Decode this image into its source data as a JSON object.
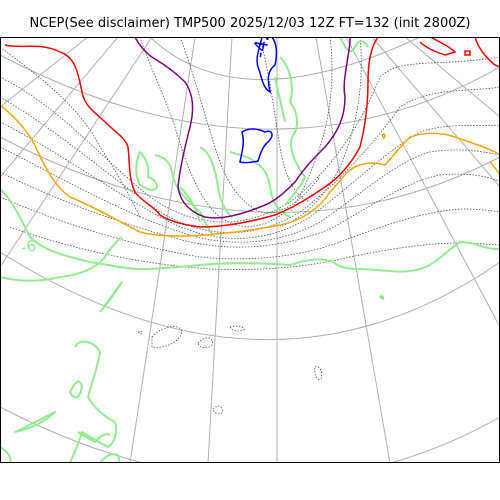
{
  "title": "NCEP(See disclaimer) TMP500 2025/12/03 12Z FT=132 (init 2800Z)",
  "contour_labels": [
    {
      "text": "-42",
      "color": "#0000ff"
    },
    {
      "text": "-6",
      "color": "#90ee90"
    }
  ],
  "colors": {
    "graticule": "#b0b0b0",
    "height_contours": "#555555",
    "coastline": "#90ee90",
    "isotherm_blue": "#0000ff",
    "isotherm_purple": "#800080",
    "isotherm_red": "#ff0000",
    "isotherm_orange": "#ffa500",
    "frame": "#000000"
  }
}
